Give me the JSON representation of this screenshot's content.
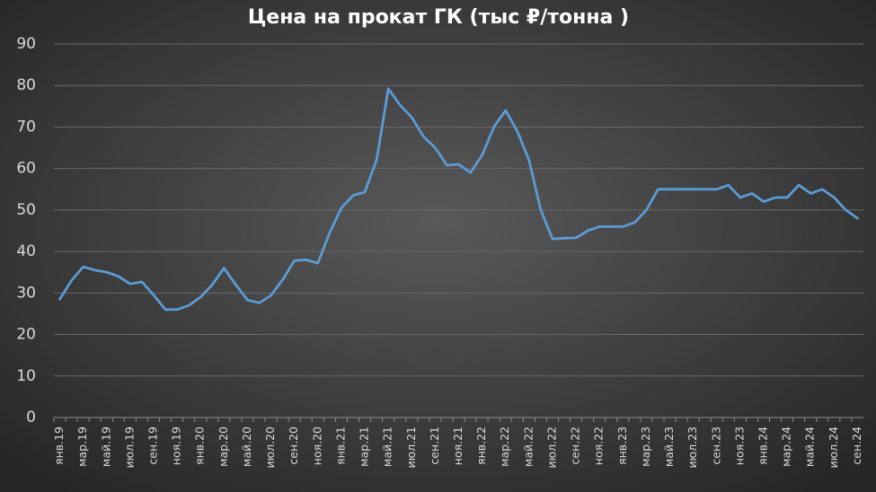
{
  "chart_data": {
    "type": "line",
    "title": "Цена на прокат ГК (тыс ₽/тонна )",
    "categories": [
      "янв.19",
      null,
      "мар.19",
      null,
      "май.19",
      null,
      "июл.19",
      null,
      "сен.19",
      null,
      "ноя.19",
      null,
      "янв.20",
      null,
      "мар.20",
      null,
      "май.20",
      null,
      "июл.20",
      null,
      "сен.20",
      null,
      "ноя.20",
      null,
      "янв.21",
      null,
      "мар.21",
      null,
      "май.21",
      null,
      "июл.21",
      null,
      "сен.21",
      null,
      "ноя.21",
      null,
      "янв.22",
      null,
      "мар.22",
      null,
      "май.22",
      null,
      "июл.22",
      null,
      "сен.22",
      null,
      "ноя.22",
      null,
      "янв.23",
      null,
      "мар.23",
      null,
      "май.23",
      null,
      "июл.23",
      null,
      "сен.23",
      null,
      "ноя.23",
      null,
      "янв.24",
      null,
      "мар.24",
      null,
      "май.24",
      null,
      "июл.24",
      null,
      "сен.24"
    ],
    "values": [
      28.5,
      33,
      36.3,
      35.5,
      35,
      34,
      32.2,
      32.7,
      29.5,
      26,
      26,
      27,
      29,
      32,
      36,
      32,
      28.3,
      27.6,
      29.4,
      33.2,
      37.8,
      38,
      37.2,
      44.5,
      50.5,
      53.5,
      54.3,
      62,
      79.2,
      75.3,
      72.3,
      67.7,
      65,
      60.8,
      61,
      59,
      63.2,
      70,
      74,
      69,
      62,
      50,
      43,
      43.2,
      43.3,
      45,
      46,
      46,
      46,
      47,
      50,
      55,
      55,
      55,
      55,
      55,
      55,
      56,
      53,
      54,
      52,
      53,
      53,
      56,
      54,
      55,
      53,
      50,
      48
    ],
    "color": "#5b9bd5",
    "ylim": [
      0,
      90
    ],
    "yticks": [
      0,
      10,
      20,
      30,
      40,
      50,
      60,
      70,
      80,
      90
    ],
    "grid": true
  }
}
